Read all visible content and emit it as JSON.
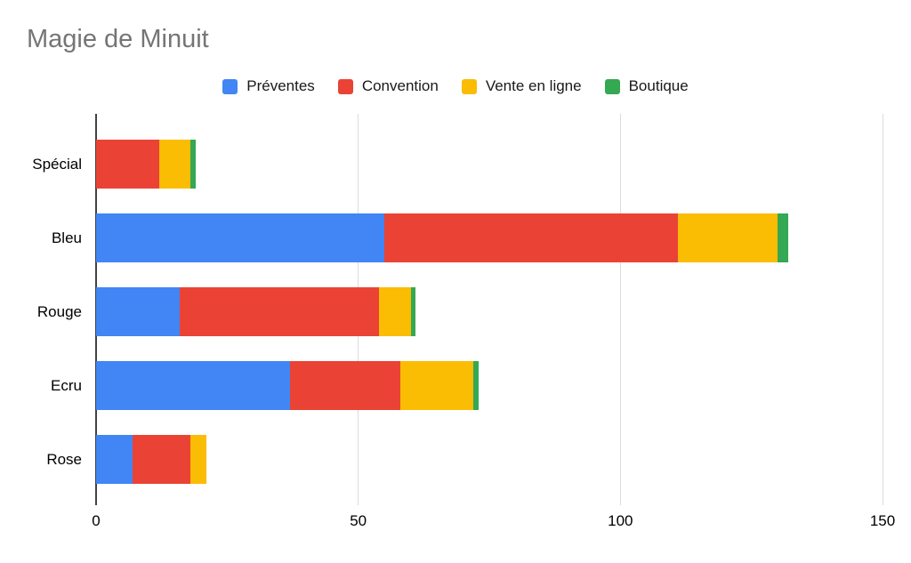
{
  "chart_data": {
    "type": "bar",
    "orientation": "horizontal",
    "stacked": true,
    "title": "Magie de Minuit",
    "xlabel": "",
    "ylabel": "",
    "categories": [
      "Spécial",
      "Bleu",
      "Rouge",
      "Ecru",
      "Rose"
    ],
    "series": [
      {
        "name": "Préventes",
        "color": "#4285F4",
        "values": [
          0,
          55,
          16,
          37,
          7
        ]
      },
      {
        "name": "Convention",
        "color": "#EA4335",
        "values": [
          12,
          56,
          38,
          21,
          11
        ]
      },
      {
        "name": "Vente en ligne",
        "color": "#FBBC04",
        "values": [
          6,
          19,
          6,
          14,
          3
        ]
      },
      {
        "name": "Boutique",
        "color": "#34A853",
        "values": [
          1,
          2,
          1,
          1,
          0
        ]
      }
    ],
    "totals": {
      "Spécial": 19,
      "Bleu": 132,
      "Rouge": 61,
      "Ecru": 73,
      "Rose": 21
    },
    "x_ticks": [
      0,
      50,
      100,
      150
    ],
    "xlim": [
      0,
      150
    ],
    "grid": true,
    "legend_position": "top",
    "colors": {
      "title_text": "#757575",
      "axis_label_text": "#000000",
      "legend_text": "#191919",
      "gridline": "#DADCE0",
      "axis_line": "#424242",
      "background": "#FFFFFF"
    }
  }
}
